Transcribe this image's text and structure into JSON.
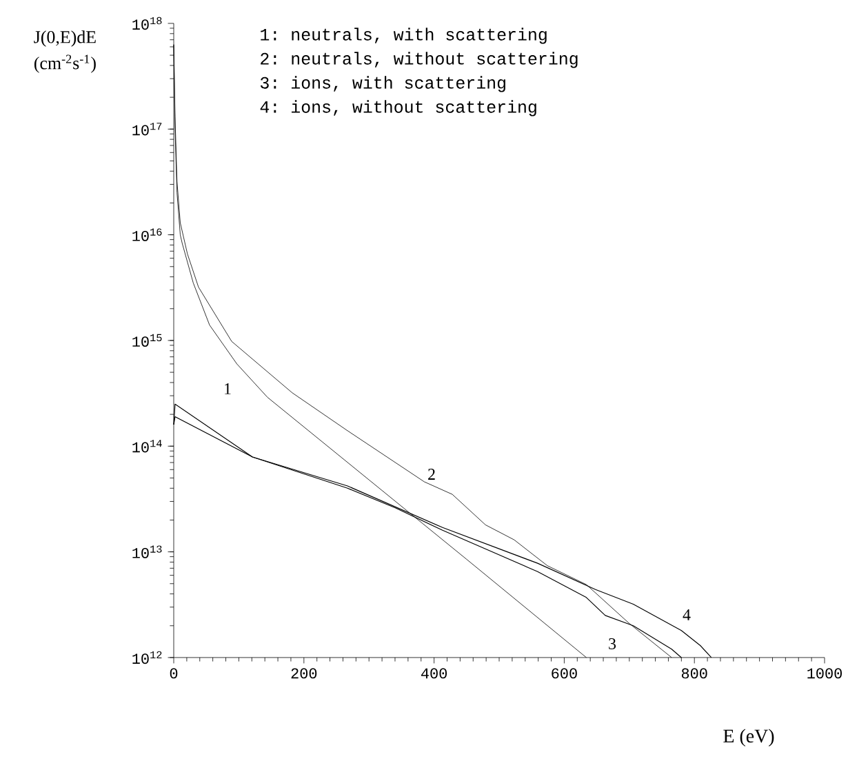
{
  "chart_data": {
    "type": "line",
    "xlabel": "E (eV)",
    "ylabel": "J(0,E)dE (cm$^{-2}$s$^{-1}$)",
    "log": "y",
    "grid": false,
    "marker": "none",
    "line_style": "solid",
    "xlim": [
      0,
      1000
    ],
    "xticks": [
      0,
      200,
      400,
      600,
      800,
      1000
    ],
    "ylim": [
      1000000000000.0,
      1e+18
    ],
    "yticks": [
      {
        "value": 1000000000000.0,
        "label": "10$^{12}$"
      },
      {
        "value": 10000000000000.0,
        "label": "10$^{13}$"
      },
      {
        "value": 100000000000000.0,
        "label": "10$^{14}$"
      },
      {
        "value": 1000000000000000.0,
        "label": "10$^{15}$"
      },
      {
        "value": 1e+16,
        "label": "10$^{16}$"
      },
      {
        "value": 1e+17,
        "label": "10$^{17}$"
      },
      {
        "value": 1e+18,
        "label": "10$^{18}$"
      }
    ],
    "series": [
      {
        "color": "#000000",
        "x": [
          0,
          2,
          5,
          10,
          13,
          30,
          55,
          97,
          144,
          300,
          450,
          634
        ],
        "values": [
          6.3e+17,
          1e+17,
          2.5e+16,
          1e+16,
          8300000000000000.0,
          3500000000000000.0,
          1400000000000000.0,
          600000000000000.0,
          290000000000000.0,
          48000000000000.0,
          8500000000000.0,
          1000000000000.0
        ]
      },
      {
        "color": "#000000",
        "x": [
          0,
          2,
          5,
          10,
          21,
          38,
          89,
          182,
          267,
          385,
          428,
          479,
          523,
          574,
          634,
          700,
          765
        ],
        "values": [
          6.3e+17,
          1.3e+17,
          3.2e+16,
          1.3e+16,
          6600000000000000.0,
          3200000000000000.0,
          980000000000000.0,
          320000000000000.0,
          140000000000000.0,
          46000000000000.0,
          35000000000000.0,
          18000000000000.0,
          13000000000000.0,
          7400000000000.0,
          4900000000000.0,
          2100000000000.0,
          1000000000000.0
        ]
      },
      {
        "color": "#000000",
        "x": [
          0,
          2,
          121,
          267,
          341,
          413,
          559,
          634,
          663,
          706,
          765,
          780
        ],
        "values": [
          160000000000000.0,
          250000000000000.0,
          79000000000000.0,
          40000000000000.0,
          26000000000000.0,
          16000000000000.0,
          6500000000000.0,
          3700000000000.0,
          2500000000000.0,
          2000000000000.0,
          1200000000000.0,
          1000000000000.0
        ]
      },
      {
        "color": "#000000",
        "x": [
          0,
          2,
          121,
          267,
          413,
          559,
          648,
          706,
          780,
          809,
          826
        ],
        "values": [
          160000000000000.0,
          190000000000000.0,
          79000000000000.0,
          42000000000000.0,
          17000000000000.0,
          7800000000000.0,
          4400000000000.0,
          3200000000000.0,
          1800000000000.0,
          1300000000000.0,
          1000000000000.0
        ]
      }
    ],
    "annotations": [
      "1: neutrals, with scattering",
      "2: neutrals, without scattering",
      "3: ions, with scattering",
      "4: ions, without scattering",
      "1",
      "2",
      "3",
      "4"
    ]
  }
}
